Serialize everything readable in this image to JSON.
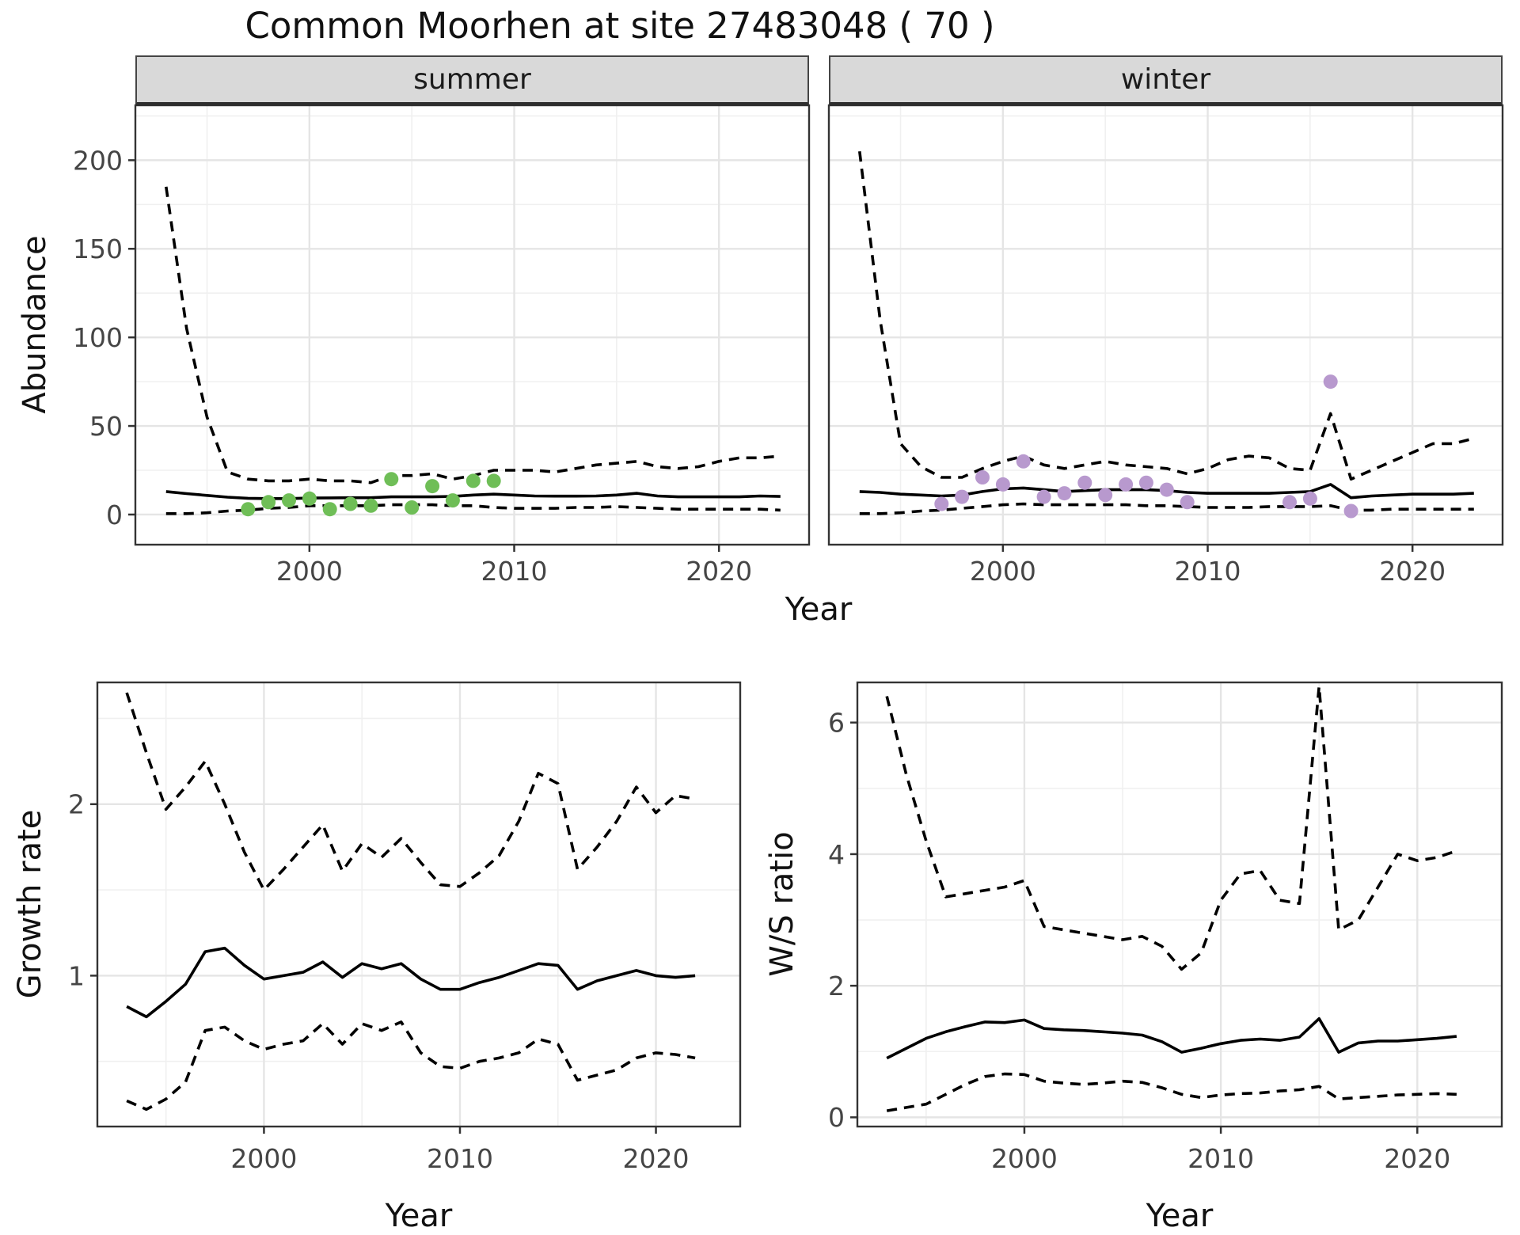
{
  "title": "Common Moorhen at site 27483048 ( 70 )",
  "facets": {
    "summer": "summer",
    "winter": "winter"
  },
  "axes": {
    "abundance": "Abundance",
    "year": "Year",
    "growth": "Growth rate",
    "ws": "W/S ratio"
  },
  "colors": {
    "summer_points": "#6FBE57",
    "winter_points": "#B899CE",
    "line": "#000000",
    "strip_bg": "#D9D9D9",
    "grid_major": "#E5E5E5",
    "grid_minor": "#F0F0F0",
    "panel_border": "#333333",
    "axis_text": "#454545"
  },
  "chart_data": [
    {
      "id": "abundance-summer",
      "type": "line",
      "facet_label": "summer",
      "xlabel": "Year",
      "ylabel": "Abundance",
      "xlim": [
        1991.5,
        2024.4
      ],
      "ylim": [
        -17,
        231
      ],
      "x_ticks": [
        2000,
        2010,
        2020
      ],
      "x_minor": [
        1995,
        2005,
        2015
      ],
      "y_ticks": [
        0,
        50,
        100,
        150,
        200
      ],
      "y_minor": [
        25,
        75,
        125,
        175,
        225
      ],
      "grid": true,
      "legend": "none",
      "years": [
        1993,
        1994,
        1995,
        1996,
        1997,
        1998,
        1999,
        2000,
        2001,
        2002,
        2003,
        2004,
        2005,
        2006,
        2007,
        2008,
        2009,
        2010,
        2011,
        2012,
        2013,
        2014,
        2015,
        2016,
        2017,
        2018,
        2019,
        2020,
        2021,
        2022,
        2023
      ],
      "series": [
        {
          "name": "median",
          "style": "solid",
          "values": [
            13,
            11.8,
            10.8,
            9.8,
            9.2,
            9,
            9,
            9.3,
            9.4,
            9.5,
            9.5,
            10,
            10,
            10,
            10.2,
            11,
            11.5,
            11,
            10.5,
            10.4,
            10.4,
            10.5,
            11,
            12,
            10.5,
            10,
            10,
            10,
            10,
            10.5,
            10.2
          ]
        },
        {
          "name": "upper-credible",
          "style": "dashed",
          "values": [
            185,
            105,
            55,
            24,
            20,
            19,
            19,
            20,
            19,
            19,
            18,
            22,
            22,
            23,
            20,
            22,
            25,
            25,
            25,
            24,
            26,
            28,
            29,
            30,
            27,
            26,
            27,
            30,
            32,
            32,
            33
          ]
        },
        {
          "name": "lower-credible",
          "style": "dashed",
          "values": [
            0.5,
            0.5,
            1,
            2,
            2.5,
            3.5,
            4,
            5,
            5,
            5,
            5,
            5.5,
            5.5,
            5.5,
            5,
            5,
            4,
            3.5,
            3.5,
            3.5,
            4,
            4,
            4.5,
            4,
            3.5,
            3,
            3,
            3,
            3,
            3,
            2.5
          ]
        }
      ],
      "points": {
        "name": "observed-counts",
        "color_key": "summer_points",
        "years": [
          1997,
          1998,
          1999,
          2000,
          2001,
          2002,
          2003,
          2004,
          2005,
          2006,
          2007,
          2008,
          2009
        ],
        "values": [
          3,
          7,
          8,
          9,
          3,
          6,
          5,
          20,
          4,
          16,
          8,
          19,
          19
        ]
      }
    },
    {
      "id": "abundance-winter",
      "type": "line",
      "facet_label": "winter",
      "xlabel": "Year",
      "ylabel": "Abundance",
      "xlim": [
        1991.5,
        2024.4
      ],
      "ylim": [
        -17,
        231
      ],
      "x_ticks": [
        2000,
        2010,
        2020
      ],
      "x_minor": [
        1995,
        2005,
        2015
      ],
      "y_ticks": [
        0,
        50,
        100,
        150,
        200
      ],
      "y_minor": [
        25,
        75,
        125,
        175,
        225
      ],
      "grid": true,
      "legend": "none",
      "years": [
        1993,
        1994,
        1995,
        1996,
        1997,
        1998,
        1999,
        2000,
        2001,
        2002,
        2003,
        2004,
        2005,
        2006,
        2007,
        2008,
        2009,
        2010,
        2011,
        2012,
        2013,
        2014,
        2015,
        2016,
        2017,
        2018,
        2019,
        2020,
        2021,
        2022,
        2023
      ],
      "series": [
        {
          "name": "median",
          "style": "solid",
          "values": [
            13,
            12.5,
            11.5,
            11,
            10.5,
            11,
            13,
            14.5,
            15,
            14,
            13,
            13.5,
            14,
            14,
            14,
            13.5,
            12.5,
            12,
            12,
            12,
            12,
            12.5,
            13,
            17,
            9.5,
            10.5,
            11,
            11.5,
            11.5,
            11.5,
            12
          ]
        },
        {
          "name": "upper-credible",
          "style": "dashed",
          "values": [
            205,
            110,
            40,
            27,
            21,
            21,
            26,
            30,
            33,
            28,
            26,
            28,
            30,
            28,
            27,
            26,
            23,
            26,
            31,
            33,
            32,
            26,
            25,
            57,
            20,
            25,
            30,
            35,
            40,
            40,
            43
          ]
        },
        {
          "name": "lower-credible",
          "style": "dashed",
          "values": [
            0.5,
            0.5,
            1,
            2,
            2.5,
            3.5,
            4.5,
            5.5,
            6,
            5.5,
            5.5,
            5.5,
            5.5,
            5.5,
            5,
            5,
            4.5,
            4,
            4,
            4,
            4.5,
            4.5,
            4.5,
            5,
            2.5,
            2.5,
            3,
            3,
            3,
            3,
            3
          ]
        }
      ],
      "points": {
        "name": "observed-counts",
        "color_key": "winter_points",
        "years": [
          1997,
          1998,
          1999,
          2000,
          2001,
          2002,
          2003,
          2004,
          2005,
          2006,
          2007,
          2008,
          2009,
          2014,
          2015,
          2016,
          2017
        ],
        "values": [
          6,
          10,
          21,
          17,
          30,
          10,
          12,
          18,
          11,
          17,
          18,
          14,
          7,
          7,
          9,
          75,
          2
        ]
      }
    },
    {
      "id": "growth-rate",
      "type": "line",
      "facet_label": "",
      "xlabel": "Year",
      "ylabel": "Growth rate",
      "xlim": [
        1991.5,
        2024.3
      ],
      "ylim": [
        0.12,
        2.71
      ],
      "x_ticks": [
        2000,
        2010,
        2020
      ],
      "x_minor": [
        1995,
        2005,
        2015
      ],
      "y_ticks": [
        1,
        2
      ],
      "y_minor": [
        0.5,
        1.5,
        2.5
      ],
      "grid": true,
      "legend": "none",
      "years": [
        1993,
        1994,
        1995,
        1996,
        1997,
        1998,
        1999,
        2000,
        2001,
        2002,
        2003,
        2004,
        2005,
        2006,
        2007,
        2008,
        2009,
        2010,
        2011,
        2012,
        2013,
        2014,
        2015,
        2016,
        2017,
        2018,
        2019,
        2020,
        2021,
        2022
      ],
      "series": [
        {
          "name": "median",
          "style": "solid",
          "values": [
            0.82,
            0.76,
            0.85,
            0.95,
            1.14,
            1.16,
            1.06,
            0.98,
            1.0,
            1.02,
            1.08,
            0.99,
            1.07,
            1.04,
            1.07,
            0.98,
            0.92,
            0.92,
            0.96,
            0.99,
            1.03,
            1.07,
            1.06,
            0.92,
            0.97,
            1.0,
            1.03,
            1.0,
            0.99,
            1.0
          ]
        },
        {
          "name": "upper-credible",
          "style": "dashed",
          "values": [
            2.65,
            2.3,
            1.97,
            2.1,
            2.25,
            2.0,
            1.72,
            1.5,
            1.62,
            1.75,
            1.88,
            1.61,
            1.77,
            1.69,
            1.8,
            1.66,
            1.53,
            1.52,
            1.6,
            1.7,
            1.9,
            2.18,
            2.12,
            1.62,
            1.75,
            1.9,
            2.1,
            1.95,
            2.05,
            2.03
          ]
        },
        {
          "name": "lower-credible",
          "style": "dashed",
          "values": [
            0.27,
            0.22,
            0.28,
            0.38,
            0.68,
            0.7,
            0.62,
            0.57,
            0.6,
            0.62,
            0.72,
            0.6,
            0.72,
            0.68,
            0.73,
            0.55,
            0.47,
            0.46,
            0.5,
            0.52,
            0.55,
            0.63,
            0.6,
            0.39,
            0.42,
            0.45,
            0.52,
            0.55,
            0.54,
            0.52
          ]
        }
      ],
      "points": null
    },
    {
      "id": "ws-ratio",
      "type": "line",
      "facet_label": "",
      "xlabel": "Year",
      "ylabel": "W/S ratio",
      "xlim": [
        1991.5,
        2024.3
      ],
      "ylim": [
        -0.14,
        6.61
      ],
      "x_ticks": [
        2000,
        2010,
        2020
      ],
      "x_minor": [
        1995,
        2005,
        2015
      ],
      "y_ticks": [
        0,
        2,
        4,
        6
      ],
      "y_minor": [
        1,
        3,
        5
      ],
      "grid": true,
      "legend": "none",
      "years": [
        1993,
        1994,
        1995,
        1996,
        1997,
        1998,
        1999,
        2000,
        2001,
        2002,
        2003,
        2004,
        2005,
        2006,
        2007,
        2008,
        2009,
        2010,
        2011,
        2012,
        2013,
        2014,
        2015,
        2016,
        2017,
        2018,
        2019,
        2020,
        2021,
        2022
      ],
      "series": [
        {
          "name": "median",
          "style": "solid",
          "values": [
            0.9,
            1.05,
            1.2,
            1.3,
            1.38,
            1.45,
            1.44,
            1.48,
            1.35,
            1.33,
            1.32,
            1.3,
            1.28,
            1.25,
            1.15,
            0.99,
            1.05,
            1.12,
            1.17,
            1.19,
            1.17,
            1.22,
            1.5,
            0.99,
            1.13,
            1.16,
            1.16,
            1.18,
            1.2,
            1.23
          ]
        },
        {
          "name": "upper-credible",
          "style": "dashed",
          "values": [
            6.4,
            5.2,
            4.2,
            3.35,
            3.4,
            3.45,
            3.5,
            3.6,
            2.9,
            2.85,
            2.8,
            2.75,
            2.7,
            2.75,
            2.6,
            2.25,
            2.5,
            3.3,
            3.7,
            3.75,
            3.3,
            3.25,
            6.55,
            2.85,
            3.0,
            3.5,
            4.0,
            3.9,
            3.95,
            4.05
          ]
        },
        {
          "name": "lower-credible",
          "style": "dashed",
          "values": [
            0.1,
            0.15,
            0.2,
            0.35,
            0.5,
            0.62,
            0.66,
            0.65,
            0.55,
            0.52,
            0.5,
            0.52,
            0.55,
            0.53,
            0.45,
            0.35,
            0.3,
            0.34,
            0.36,
            0.37,
            0.4,
            0.42,
            0.47,
            0.28,
            0.3,
            0.32,
            0.34,
            0.35,
            0.36,
            0.35
          ]
        }
      ],
      "points": null
    }
  ]
}
